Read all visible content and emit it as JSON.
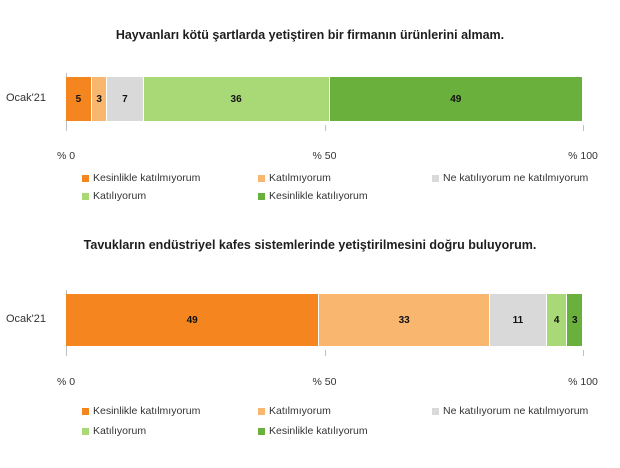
{
  "chart_data": [
    {
      "type": "bar",
      "orientation": "horizontal",
      "stacked": true,
      "title": "Hayvanları kötü şartlarda yetiştiren bir firmanın ürünlerini almam.",
      "categories": [
        "Ocak'21"
      ],
      "series": [
        {
          "name": "Kesinlikle katılmıyorum",
          "values": [
            5
          ],
          "color": "#f5861f"
        },
        {
          "name": "Katılmıyorum",
          "values": [
            3
          ],
          "color": "#f9b66f"
        },
        {
          "name": "Ne katılıyorum ne katılmıyorum",
          "values": [
            7
          ],
          "color": "#d9d9d9"
        },
        {
          "name": "Katılıyorum",
          "values": [
            36
          ],
          "color": "#a9d977"
        },
        {
          "name": "Kesinlikle katılıyorum",
          "values": [
            49
          ],
          "color": "#6ab03c"
        }
      ],
      "xlim": [
        0,
        100
      ],
      "x_ticks": [
        "% 0",
        "% 50",
        "% 100"
      ],
      "grid": false,
      "legend_position": "bottom"
    },
    {
      "type": "bar",
      "orientation": "horizontal",
      "stacked": true,
      "title": "Tavukların endüstriyel kafes sistemlerinde yetiştirilmesini doğru buluyorum.",
      "categories": [
        "Ocak'21"
      ],
      "series": [
        {
          "name": "Kesinlikle katılmıyorum",
          "values": [
            49
          ],
          "color": "#f5861f"
        },
        {
          "name": "Katılmıyorum",
          "values": [
            33
          ],
          "color": "#f9b66f"
        },
        {
          "name": "Ne katılıyorum ne katılmıyorum",
          "values": [
            11
          ],
          "color": "#d9d9d9"
        },
        {
          "name": "Katılıyorum",
          "values": [
            4
          ],
          "color": "#a9d977"
        },
        {
          "name": "Kesinlikle katılıyorum",
          "values": [
            3
          ],
          "color": "#6ab03c"
        }
      ],
      "xlim": [
        0,
        100
      ],
      "x_ticks": [
        "% 0",
        "% 50",
        "% 100"
      ],
      "grid": false,
      "legend_position": "bottom"
    }
  ]
}
